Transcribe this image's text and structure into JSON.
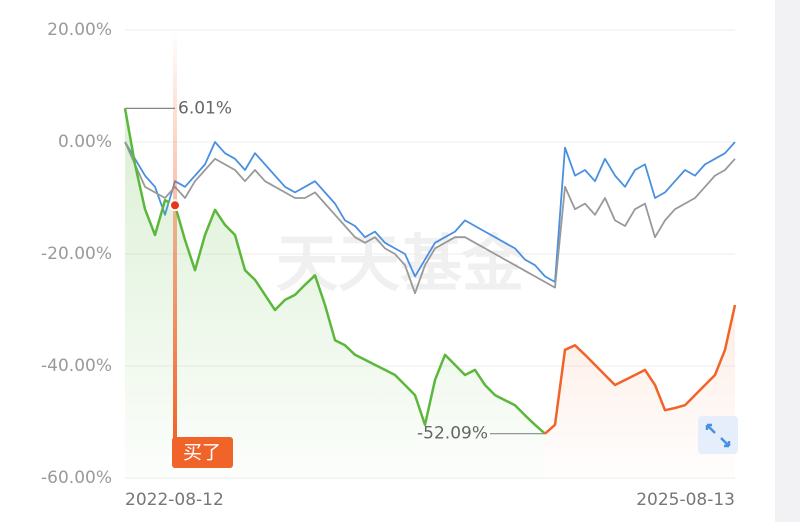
{
  "chart_data": {
    "type": "line",
    "x": [
      "2022-08-12",
      null,
      null,
      null,
      null,
      null,
      null,
      null,
      null,
      null,
      null,
      null,
      null,
      null,
      null,
      null,
      null,
      null,
      null,
      null,
      null,
      null,
      null,
      null,
      null,
      null,
      null,
      null,
      null,
      null,
      null,
      null,
      null,
      null,
      null,
      null,
      null,
      null,
      null,
      null,
      null,
      null,
      null,
      null,
      null,
      null,
      null,
      null,
      null,
      null,
      null,
      null,
      null,
      null,
      null,
      null,
      null,
      null,
      null,
      null,
      null,
      "2025-08-13"
    ],
    "series": [
      {
        "color": "#5cb83c",
        "values": [
          6.01,
          -4,
          -12,
          -16.6,
          -10.4,
          -11.3,
          -17.5,
          -22.9,
          -16.6,
          -12.1,
          -14.8,
          -16.6,
          -22.9,
          -24.6,
          -27.3,
          -30,
          -28.2,
          -27.3,
          -25.5,
          -23.8,
          -29.1,
          -35.4,
          -36.3,
          -38,
          -38.9,
          -39.8,
          -40.7,
          -41.6,
          -43.4,
          -45.2,
          -50.5,
          -42.5,
          -38,
          -39.8,
          -41.6,
          -40.7,
          -43.4,
          -45.2,
          -46.1,
          -47,
          -48.8,
          -50.5,
          -52.09,
          null,
          null,
          null,
          null,
          null,
          null,
          null,
          null,
          null,
          null,
          null,
          null,
          null,
          null,
          null,
          null,
          null,
          null,
          null
        ]
      },
      {
        "color": "#f0642a",
        "values": [
          null,
          null,
          null,
          null,
          null,
          null,
          null,
          null,
          null,
          null,
          null,
          null,
          null,
          null,
          null,
          null,
          null,
          null,
          null,
          null,
          null,
          null,
          null,
          null,
          null,
          null,
          null,
          null,
          null,
          null,
          null,
          null,
          null,
          null,
          null,
          null,
          null,
          null,
          null,
          null,
          null,
          null,
          -52.09,
          -50.5,
          -37.1,
          -36.3,
          -38,
          -39.8,
          -41.6,
          -43.4,
          -42.5,
          -41.6,
          -40.7,
          -43.4,
          -47.9,
          -47.5,
          -47,
          -45.2,
          -43.4,
          -41.6,
          -37.1,
          -29.1
        ]
      },
      {
        "color": "#4a90e2",
        "values": [
          0,
          -3,
          -6,
          -8,
          -13,
          -7,
          -8,
          -6,
          -4,
          0,
          -2,
          -3,
          -5,
          -2,
          -4,
          -6,
          -8,
          -9,
          -8,
          -7,
          -9,
          -11,
          -14,
          -15,
          -17,
          -16,
          -18,
          -19,
          -20,
          -24,
          -21,
          -18,
          -17,
          -16,
          -14,
          -15,
          -16,
          -17,
          -18,
          -19,
          -21,
          -22,
          -24,
          -25,
          -1,
          -6,
          -5,
          -7,
          -3,
          -6,
          -8,
          -5,
          -4,
          -10,
          -9,
          -7,
          -5,
          -6,
          -4,
          -3,
          -2,
          0
        ]
      },
      {
        "color": "#999999",
        "values": [
          0,
          -4,
          -8,
          -9,
          -10,
          -8,
          -10,
          -7,
          -5,
          -3,
          -4,
          -5,
          -7,
          -5,
          -7,
          -8,
          -9,
          -10,
          -10,
          -9,
          -11,
          -13,
          -15,
          -17,
          -18,
          -17,
          -19,
          -20,
          -22,
          -27,
          -22,
          -19,
          -18,
          -17,
          -17,
          -18,
          -19,
          -20,
          -21,
          -22,
          -23,
          -24,
          -25,
          -26,
          -8,
          -12,
          -11,
          -13,
          -10,
          -14,
          -15,
          -12,
          -11,
          -17,
          -14,
          -12,
          -11,
          -10,
          -8,
          -6,
          -5,
          -3
        ]
      }
    ],
    "ylim": [
      -60,
      20
    ],
    "yticks": [
      {
        "value": -60,
        "label": "-60.00%"
      },
      {
        "value": -40,
        "label": "-40.00%"
      },
      {
        "value": -20,
        "label": "-20.00%"
      },
      {
        "value": 0,
        "label": "0.00%"
      },
      {
        "value": 20,
        "label": "20.00%"
      }
    ],
    "grid": true,
    "max_label": "6.01%",
    "min_label": "-52.09%",
    "buy_label": "买了",
    "watermark": "天天基金"
  }
}
